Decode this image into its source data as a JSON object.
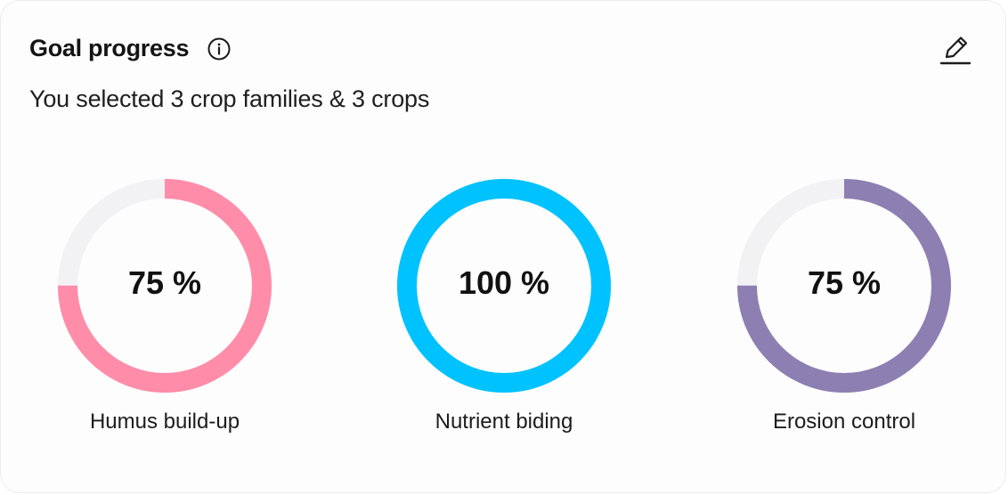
{
  "header": {
    "title": "Goal progress",
    "info_icon": "info-circle-icon",
    "edit_icon": "pencil-icon"
  },
  "subtitle": "You selected 3 crop families & 3 crops",
  "colors": {
    "track": "#f2f1f4",
    "humus": "#ff8ca8",
    "nutrient": "#00c2ff",
    "erosion": "#8d7fb2"
  },
  "goals": [
    {
      "label": "Humus build-up",
      "value_text": "75 %",
      "percent": 75,
      "color": "#ff8ca8"
    },
    {
      "label": "Nutrient biding",
      "value_text": "100 %",
      "percent": 100,
      "color": "#00c2ff"
    },
    {
      "label": "Erosion control",
      "value_text": "75 %",
      "percent": 75,
      "color": "#8d7fb2"
    }
  ]
}
